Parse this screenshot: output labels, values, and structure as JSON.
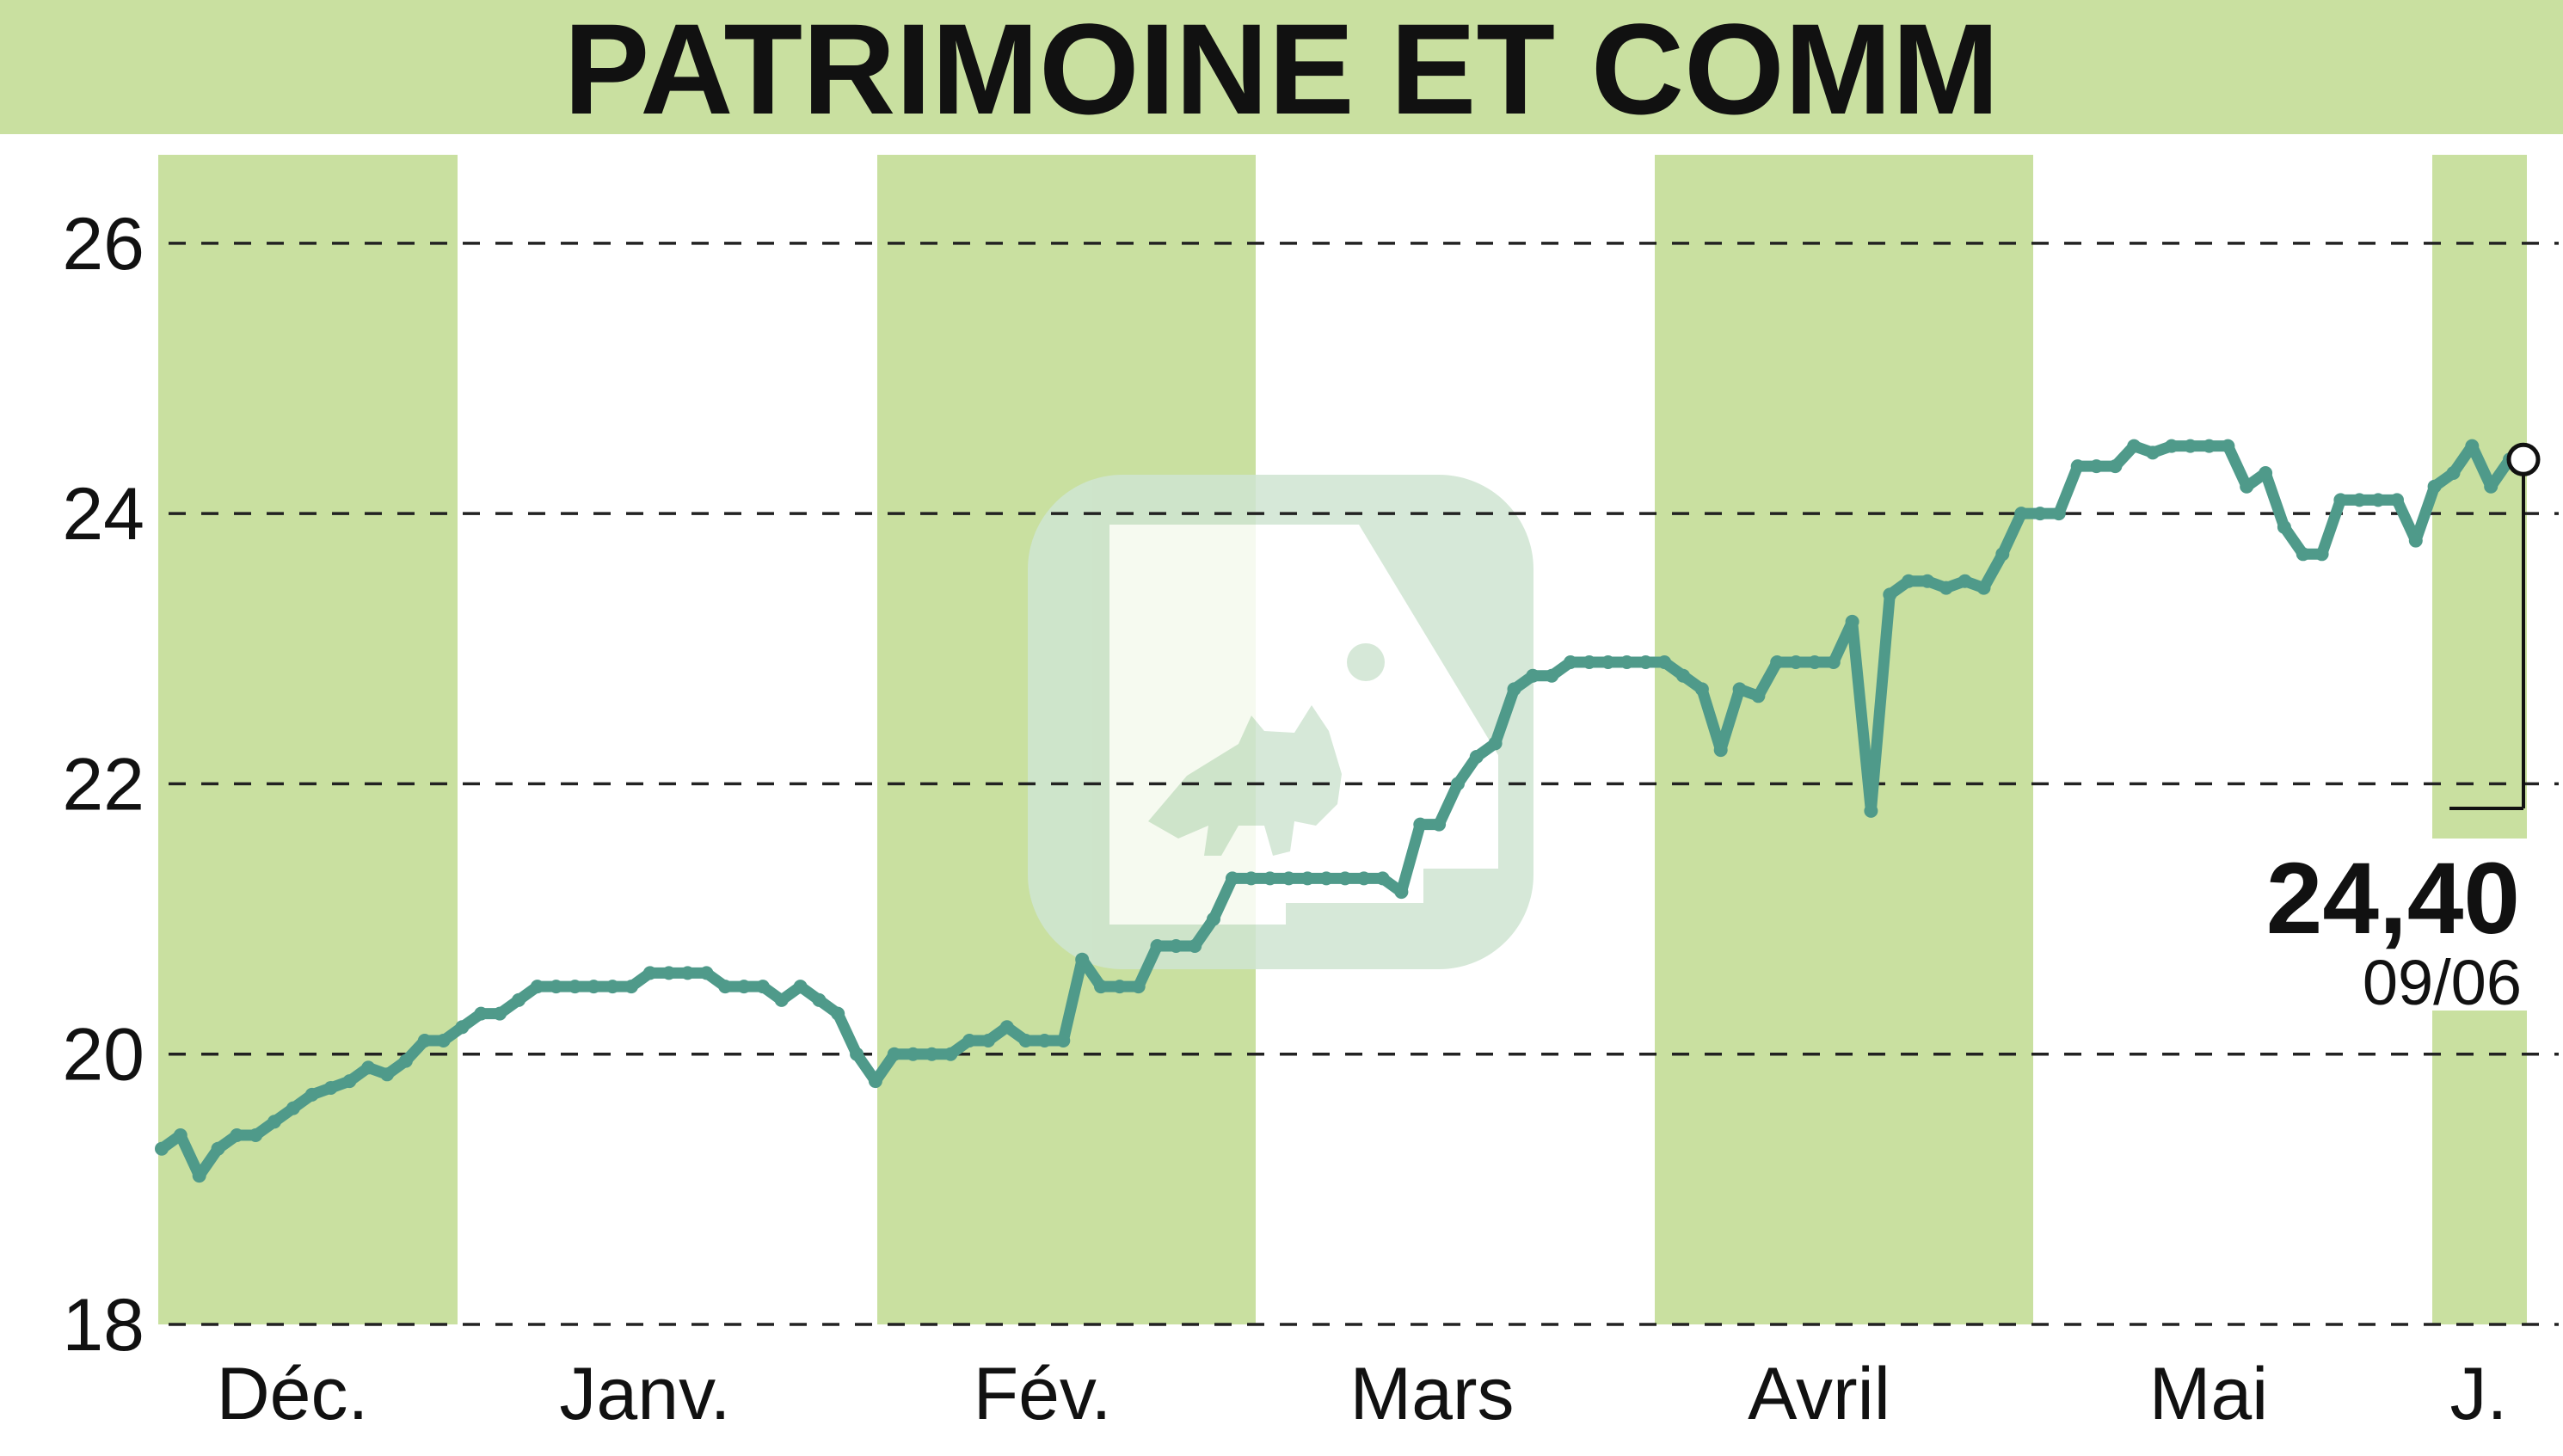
{
  "colors": {
    "header_bg": "#c9e0a0",
    "band": "#c9e0a0",
    "line": "#4f9a8a",
    "text": "#111111",
    "grid": "#222222",
    "watermark": "#cfe5d2"
  },
  "watermark_icon": "bull-logo-icon",
  "chart_data": {
    "type": "line",
    "title": "PATRIMOINE ET COMM",
    "xlabel": "",
    "ylabel": "",
    "ylim": [
      18,
      26.4
    ],
    "y_ticks": [
      "18",
      "20",
      "22",
      "24",
      "26"
    ],
    "grid": true,
    "months": [
      {
        "label": "Déc.",
        "shaded": true
      },
      {
        "label": "Janv.",
        "shaded": false
      },
      {
        "label": "Fév.",
        "shaded": true
      },
      {
        "label": "Mars",
        "shaded": false
      },
      {
        "label": "Avril",
        "shaded": true
      },
      {
        "label": "Mai",
        "shaded": false
      },
      {
        "label": "J.",
        "shaded": true
      }
    ],
    "values": [
      19.3,
      19.4,
      19.1,
      19.3,
      19.4,
      19.4,
      19.5,
      19.6,
      19.7,
      19.75,
      19.8,
      19.9,
      19.85,
      19.95,
      20.1,
      20.1,
      20.2,
      20.3,
      20.3,
      20.4,
      20.5,
      20.5,
      20.5,
      20.5,
      20.5,
      20.5,
      20.6,
      20.6,
      20.6,
      20.6,
      20.5,
      20.5,
      20.5,
      20.4,
      20.5,
      20.4,
      20.3,
      20.0,
      19.8,
      20.0,
      20.0,
      20.0,
      20.0,
      20.1,
      20.1,
      20.2,
      20.1,
      20.1,
      20.1,
      20.7,
      20.5,
      20.5,
      20.5,
      20.8,
      20.8,
      20.8,
      21.0,
      21.3,
      21.3,
      21.3,
      21.3,
      21.3,
      21.3,
      21.3,
      21.3,
      21.3,
      21.2,
      21.7,
      21.7,
      22.0,
      22.2,
      22.3,
      22.7,
      22.8,
      22.8,
      22.9,
      22.9,
      22.9,
      22.9,
      22.9,
      22.9,
      22.8,
      22.7,
      22.25,
      22.7,
      22.65,
      22.9,
      22.9,
      22.9,
      22.9,
      23.2,
      21.8,
      23.4,
      23.5,
      23.5,
      23.45,
      23.5,
      23.45,
      23.7,
      24.0,
      24.0,
      24.0,
      24.35,
      24.35,
      24.35,
      24.5,
      24.45,
      24.5,
      24.5,
      24.5,
      24.5,
      24.2,
      24.3,
      23.9,
      23.7,
      23.7,
      24.1,
      24.1,
      24.1,
      24.1,
      23.8,
      24.2,
      24.3,
      24.5,
      24.2,
      24.4
    ],
    "last_value": "24,40",
    "last_date": "09/06"
  }
}
